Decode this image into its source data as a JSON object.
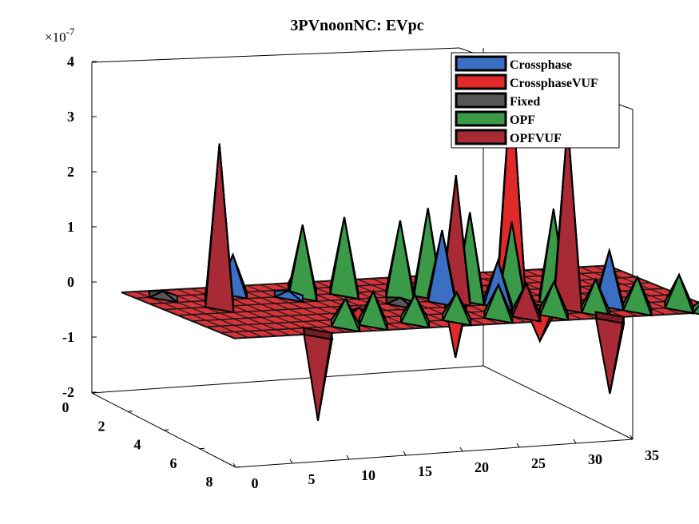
{
  "chart_data": {
    "type": "surface3d",
    "title": "3PVnoonNC: EVpc",
    "z_exponent_label": "×10",
    "z_exponent": "-7",
    "x_ticks": [
      "0",
      "5",
      "10",
      "15",
      "20",
      "25",
      "30",
      "35"
    ],
    "y_ticks": [
      "0",
      "2",
      "4",
      "6",
      "8"
    ],
    "z_ticks": [
      "4",
      "3",
      "2",
      "1",
      "0",
      "-1",
      "-2"
    ],
    "xlim": [
      0,
      35
    ],
    "ylim": [
      0,
      8
    ],
    "zlim": [
      -2,
      4
    ],
    "legend_position": "top-right",
    "series": [
      {
        "name": "Crossphase",
        "color": "#3b6fc4",
        "spikes": [
          [
            7,
            1,
            0.7
          ],
          [
            10,
            2,
            0.1
          ],
          [
            12,
            1,
            0.6
          ],
          [
            14,
            2,
            0.2
          ],
          [
            17,
            3,
            0.5
          ],
          [
            19,
            4,
            1.3
          ],
          [
            22,
            5,
            0.8
          ],
          [
            26,
            6,
            0.4
          ],
          [
            29,
            6,
            1.0
          ]
        ]
      },
      {
        "name": "CrossphaseVUF",
        "color": "#e02a2a",
        "spikes": [
          [
            6,
            8,
            -0.3
          ],
          [
            11,
            6,
            0.2
          ],
          [
            22,
            2,
            -1.3
          ],
          [
            25,
            3,
            3.9
          ],
          [
            24,
            6,
            -0.6
          ]
        ]
      },
      {
        "name": "Fixed",
        "color": "#555555",
        "spikes": [
          [
            2,
            1,
            0.1
          ],
          [
            16,
            4,
            0.1
          ]
        ]
      },
      {
        "name": "OPF",
        "color": "#3a9a48",
        "spikes": [
          [
            5,
            2,
            1.3
          ],
          [
            11,
            2,
            1.3
          ],
          [
            14,
            2,
            1.4
          ],
          [
            17,
            3,
            1.4
          ],
          [
            19,
            3,
            1.6
          ],
          [
            21,
            4,
            1.6
          ],
          [
            23,
            5,
            1.5
          ],
          [
            26,
            5,
            1.7
          ],
          [
            9,
            7,
            0.5
          ],
          [
            11,
            7,
            0.6
          ],
          [
            14,
            7,
            0.5
          ],
          [
            17,
            7,
            0.5
          ],
          [
            20,
            7,
            0.6
          ],
          [
            24,
            7,
            0.6
          ],
          [
            27,
            7,
            0.6
          ],
          [
            30,
            7,
            0.6
          ],
          [
            33,
            7,
            0.6
          ],
          [
            34,
            8,
            0.3
          ]
        ]
      },
      {
        "name": "OPFVUF",
        "color": "#a72a35",
        "spikes": [
          [
            4,
            3,
            3.0
          ],
          [
            6,
            8,
            -1.6
          ],
          [
            20,
            4,
            2.3
          ],
          [
            22,
            7,
            0.6
          ],
          [
            26,
            6,
            3.4
          ],
          [
            27,
            8,
            -1.4
          ]
        ]
      }
    ]
  }
}
